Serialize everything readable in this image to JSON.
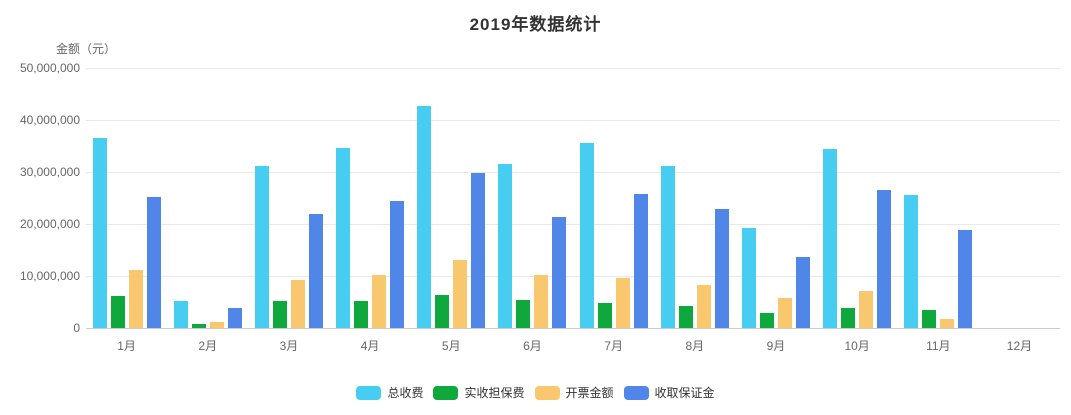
{
  "chart_data": {
    "type": "bar",
    "title": "2019年数据统计",
    "ylabel": "金额（元）",
    "xlabel": "",
    "categories": [
      "1月",
      "2月",
      "3月",
      "4月",
      "5月",
      "6月",
      "7月",
      "8月",
      "9月",
      "10月",
      "11月",
      "12月"
    ],
    "series": [
      {
        "name": "总收费",
        "color": "#48CDF2",
        "values": [
          36500000,
          5200000,
          31200000,
          34700000,
          42700000,
          31500000,
          35500000,
          31100000,
          19200000,
          34400000,
          25500000,
          0
        ]
      },
      {
        "name": "实收担保费",
        "color": "#0EA83C",
        "values": [
          6200000,
          800000,
          5100000,
          5100000,
          6400000,
          5400000,
          4800000,
          4300000,
          2900000,
          3900000,
          3400000,
          0
        ]
      },
      {
        "name": "开票金额",
        "color": "#F9C76E",
        "values": [
          11200000,
          1200000,
          9200000,
          10200000,
          13000000,
          10200000,
          9600000,
          8200000,
          5700000,
          7100000,
          1800000,
          0
        ]
      },
      {
        "name": "收取保证金",
        "color": "#4F86E8",
        "values": [
          25200000,
          3900000,
          22000000,
          24400000,
          29800000,
          21300000,
          25800000,
          22800000,
          13700000,
          26600000,
          18800000,
          0
        ]
      }
    ],
    "ylim": [
      0,
      50000000
    ],
    "ytick_interval": 10000000,
    "ytick_labels": [
      "50,000,000",
      "40,000,000",
      "30,000,000",
      "20,000,000",
      "10,000,000",
      "0"
    ],
    "grid": true,
    "grid_color": "#E9E9E9",
    "axis_line_color": "#CCCCCC",
    "legend_position": "bottom"
  }
}
